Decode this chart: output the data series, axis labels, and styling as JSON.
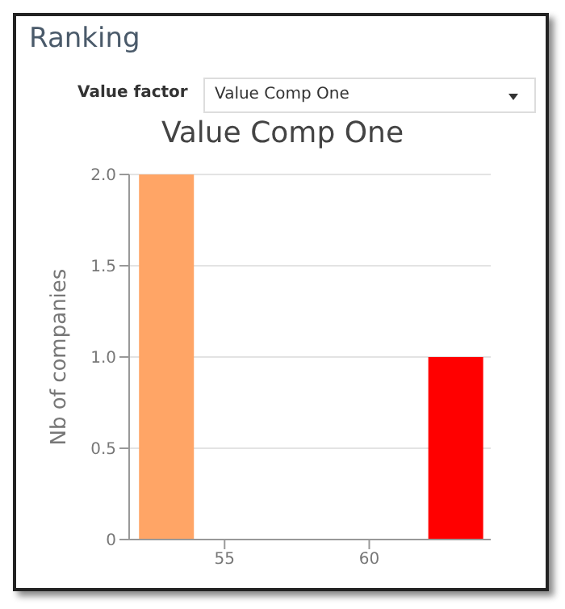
{
  "chart_data": {
    "type": "bar",
    "title": "Value Comp One",
    "ylabel": "Nb of companies",
    "annotations": [
      "Ranking",
      "Value factor",
      "Value Comp One"
    ],
    "x": [
      53,
      63
    ],
    "values": [
      2,
      1
    ],
    "colors": [
      "#ffa566",
      "#ff0000"
    ],
    "xlim": [
      51.7,
      64.2
    ],
    "xticks": [
      55,
      60
    ],
    "ylim": [
      0,
      2
    ],
    "yticks": [
      {
        "value": 0,
        "label": "0"
      },
      {
        "value": 0.5,
        "label": "0.5"
      },
      {
        "value": 1,
        "label": "1.0"
      },
      {
        "value": 1.5,
        "label": "1.5"
      },
      {
        "value": 2,
        "label": "2.0"
      }
    ],
    "grid": "y"
  }
}
